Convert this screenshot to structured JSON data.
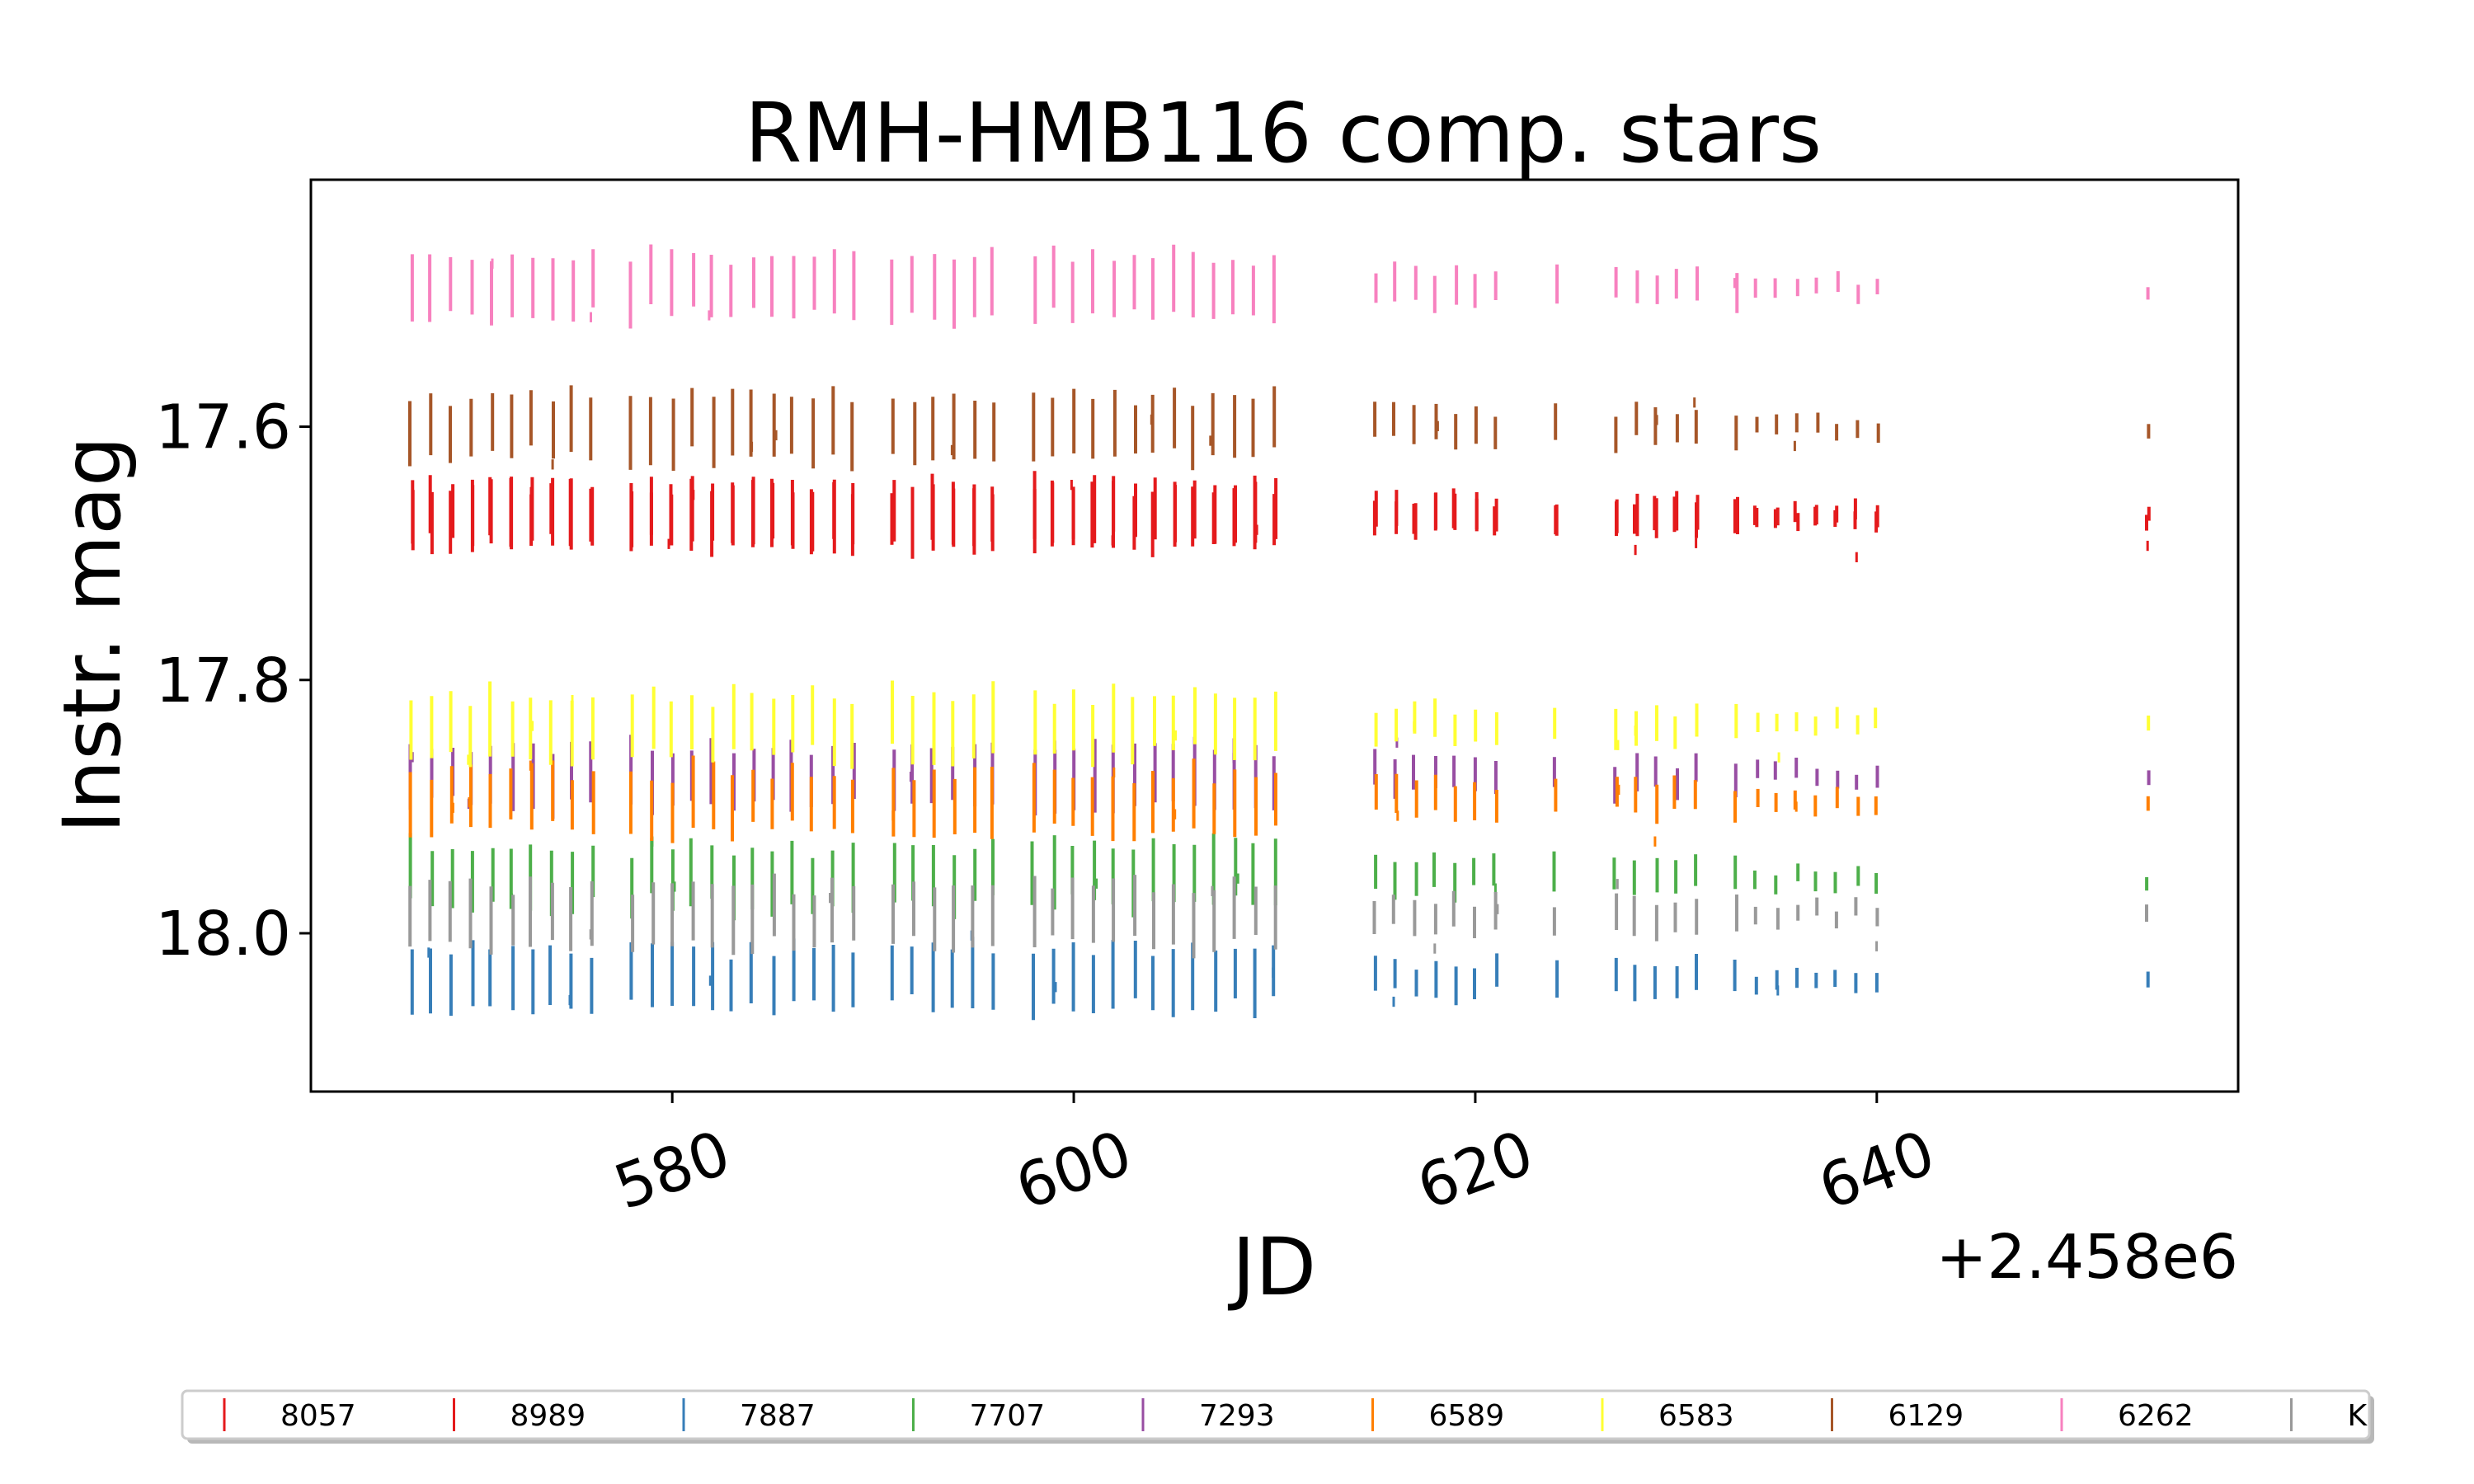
{
  "chart_data": {
    "type": "scatter",
    "title": "RMH-HMB116 comp. stars",
    "xlabel": "JD",
    "ylabel": "Instr. mag",
    "x_offset_label": "+2.458e6",
    "x_offset": 2458000,
    "xlim": [
      562,
      658
    ],
    "ylim": [
      18.125,
      17.405
    ],
    "y_inverted": true,
    "xticks": [
      580,
      600,
      620,
      640
    ],
    "xtick_labels": [
      "580",
      "600",
      "620",
      "640"
    ],
    "yticks": [
      17.6,
      17.8,
      18.0
    ],
    "ytick_labels": [
      "17.6",
      "17.8",
      "18.0"
    ],
    "grid": false,
    "legend_position": "bottom",
    "marker": "vertical-line",
    "observation_nights_jd": [
      567,
      568,
      569,
      570,
      571,
      572,
      573,
      574,
      575,
      576,
      578,
      579,
      580,
      581,
      582,
      583,
      584,
      585,
      586,
      587,
      588,
      589,
      591,
      592,
      593,
      594,
      595,
      596,
      598,
      599,
      600,
      601,
      602,
      603,
      604,
      605,
      606,
      607,
      608,
      609,
      610,
      615,
      616,
      617,
      618,
      619,
      620,
      621,
      624,
      627,
      628,
      629,
      630,
      631,
      633,
      634,
      635,
      636,
      637,
      638,
      639,
      640,
      653.5
    ],
    "series": [
      {
        "name": "8057",
        "color": "#e41a1c",
        "mean_mag": 17.67
      },
      {
        "name": "8989",
        "color": "#e41a1c",
        "mean_mag": 17.67
      },
      {
        "name": "7887",
        "color": "#377eb8",
        "mean_mag": 18.035
      },
      {
        "name": "7707",
        "color": "#4daf4a",
        "mean_mag": 17.955
      },
      {
        "name": "7293",
        "color": "#984ea3",
        "mean_mag": 17.875
      },
      {
        "name": "6589",
        "color": "#ff7f00",
        "mean_mag": 17.895
      },
      {
        "name": "6583",
        "color": "#ffff33",
        "mean_mag": 17.835
      },
      {
        "name": "6129",
        "color": "#a65628",
        "mean_mag": 17.6
      },
      {
        "name": "6262",
        "color": "#f781bf",
        "mean_mag": 17.49
      },
      {
        "name": "K",
        "color": "#999999",
        "mean_mag": 17.985
      }
    ]
  }
}
